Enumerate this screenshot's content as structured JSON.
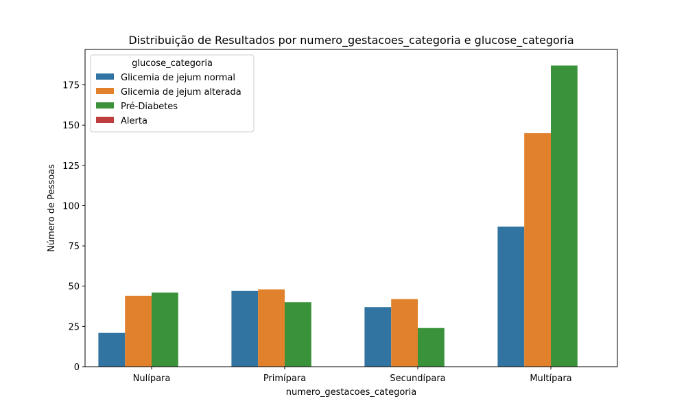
{
  "chart_data": {
    "type": "bar",
    "title": "Distribuição de Resultados por numero_gestacoes_categoria e glucose_categoria",
    "xlabel": "numero_gestacoes_categoria",
    "ylabel": "Número de Pessoas",
    "categories": [
      "Nulípara",
      "Primípara",
      "Secundípara",
      "Multípara"
    ],
    "ylim": [
      0,
      197
    ],
    "yticks": [
      0,
      25,
      50,
      75,
      100,
      125,
      150,
      175
    ],
    "legend": {
      "title": "glucose_categoria",
      "placement": "top-left"
    },
    "series": [
      {
        "name": "Glicemia de jejum normal",
        "color": "#3274a1",
        "values": [
          21,
          47,
          37,
          87
        ]
      },
      {
        "name": "Glicemia de jejum alterada",
        "color": "#e1812c",
        "values": [
          44,
          48,
          42,
          145
        ]
      },
      {
        "name": "Pré-Diabetes",
        "color": "#3a923a",
        "values": [
          46,
          40,
          24,
          187
        ]
      },
      {
        "name": "Alerta",
        "color": "#c03d3e",
        "values": [
          0,
          0,
          0,
          0
        ]
      }
    ]
  }
}
